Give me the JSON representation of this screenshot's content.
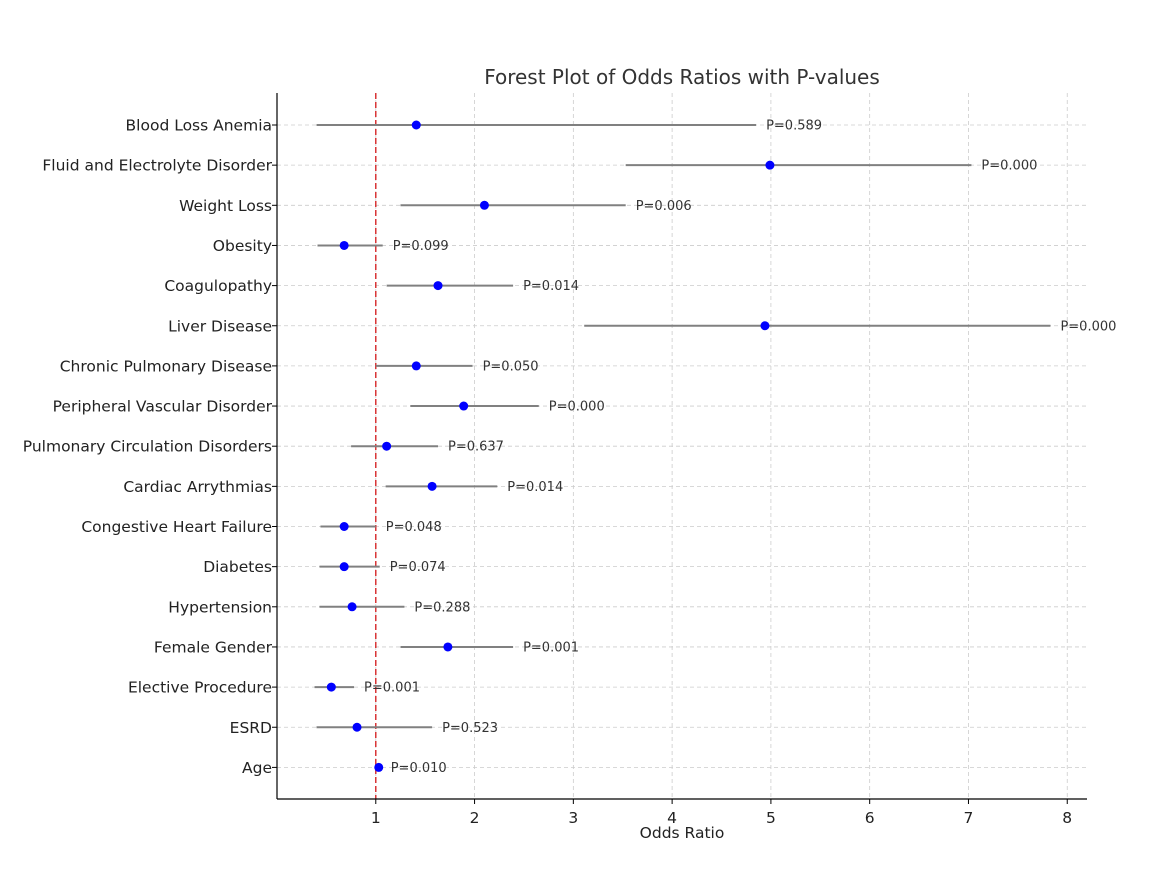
{
  "chart_data": {
    "type": "scatter",
    "subtype": "forest",
    "title": "Forest Plot of Odds Ratios with P-values",
    "xlabel": "Odds Ratio",
    "ylabel": "",
    "xlim": [
      0.0,
      8.2
    ],
    "xticks": [
      "1",
      "2",
      "3",
      "4",
      "5",
      "6",
      "7",
      "8"
    ],
    "grid": true,
    "reference_line": {
      "x": 1,
      "color": "#d62728",
      "style": "dashed"
    },
    "colors": {
      "point": "#0000ff",
      "ci": "#808080",
      "grid": "#cccccc",
      "axis": "#000000"
    },
    "rows": [
      {
        "label": "Blood Loss Anemia",
        "or": 1.41,
        "ci_low": 0.4,
        "ci_high": 4.85,
        "pvalue": "P=0.589"
      },
      {
        "label": "Fluid and Electrolyte Disorder",
        "or": 4.99,
        "ci_low": 3.53,
        "ci_high": 7.03,
        "pvalue": "P=0.000"
      },
      {
        "label": "Weight Loss",
        "or": 2.1,
        "ci_low": 1.25,
        "ci_high": 3.53,
        "pvalue": "P=0.006"
      },
      {
        "label": "Obesity",
        "or": 0.68,
        "ci_low": 0.41,
        "ci_high": 1.07,
        "pvalue": "P=0.099"
      },
      {
        "label": "Coagulopathy",
        "or": 1.63,
        "ci_low": 1.11,
        "ci_high": 2.39,
        "pvalue": "P=0.014"
      },
      {
        "label": "Liver Disease",
        "or": 4.94,
        "ci_low": 3.11,
        "ci_high": 7.83,
        "pvalue": "P=0.000"
      },
      {
        "label": "Chronic Pulmonary Disease",
        "or": 1.41,
        "ci_low": 1.0,
        "ci_high": 1.98,
        "pvalue": "P=0.050"
      },
      {
        "label": "Peripheral Vascular Disorder",
        "or": 1.89,
        "ci_low": 1.35,
        "ci_high": 2.65,
        "pvalue": "P=0.000"
      },
      {
        "label": "Pulmonary Circulation Disorders",
        "or": 1.11,
        "ci_low": 0.75,
        "ci_high": 1.63,
        "pvalue": "P=0.637"
      },
      {
        "label": "Cardiac Arrythmias",
        "or": 1.57,
        "ci_low": 1.1,
        "ci_high": 2.23,
        "pvalue": "P=0.014"
      },
      {
        "label": "Congestive Heart Failure",
        "or": 0.68,
        "ci_low": 0.44,
        "ci_high": 1.0,
        "pvalue": "P=0.048"
      },
      {
        "label": "Diabetes",
        "or": 0.68,
        "ci_low": 0.43,
        "ci_high": 1.04,
        "pvalue": "P=0.074"
      },
      {
        "label": "Hypertension",
        "or": 0.76,
        "ci_low": 0.43,
        "ci_high": 1.29,
        "pvalue": "P=0.288"
      },
      {
        "label": "Female Gender",
        "or": 1.73,
        "ci_low": 1.25,
        "ci_high": 2.39,
        "pvalue": "P=0.001"
      },
      {
        "label": "Elective Procedure",
        "or": 0.55,
        "ci_low": 0.38,
        "ci_high": 0.78,
        "pvalue": "P=0.001"
      },
      {
        "label": "ESRD",
        "or": 0.81,
        "ci_low": 0.4,
        "ci_high": 1.57,
        "pvalue": "P=0.523"
      },
      {
        "label": "Age",
        "or": 1.03,
        "ci_low": 1.01,
        "ci_high": 1.05,
        "pvalue": "P=0.010"
      }
    ]
  }
}
